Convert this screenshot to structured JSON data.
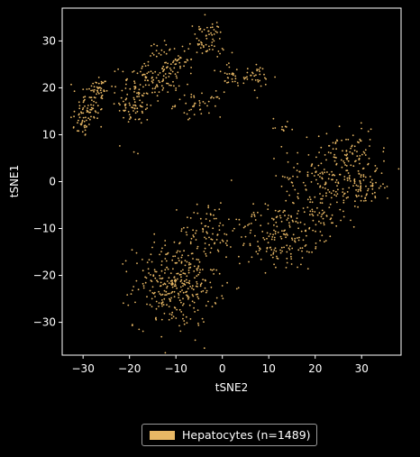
{
  "colors": {
    "background": "#000000",
    "points": "#e8b865",
    "axis": "#ffffff"
  },
  "chart_data": {
    "type": "scatter",
    "title": "",
    "xlabel": "tSNE2",
    "ylabel": "tSNE1",
    "xlim": [
      -34.5,
      38.5
    ],
    "ylim": [
      -37,
      37
    ],
    "xticks": [
      -30,
      -20,
      -10,
      0,
      10,
      20,
      30
    ],
    "yticks": [
      -30,
      -20,
      -10,
      0,
      10,
      20,
      30
    ],
    "xtick_labels": [
      "−30",
      "−20",
      "−10",
      "0",
      "10",
      "20",
      "30"
    ],
    "ytick_labels": [
      "−30",
      "−20",
      "−10",
      "0",
      "10",
      "20",
      "30"
    ],
    "grid": false,
    "legend_placement": "below",
    "series": [
      {
        "name": "Hepatocytes (n=1489)",
        "color": "#e8b865",
        "n_points": 1489,
        "clusters": [
          {
            "cx": -30,
            "cy": 13,
            "sx": 1.4,
            "sy": 1.8,
            "n": 45
          },
          {
            "cx": -28,
            "cy": 17,
            "sx": 1.5,
            "sy": 2.0,
            "n": 45
          },
          {
            "cx": -26.5,
            "cy": 20,
            "sx": 1.5,
            "sy": 1.5,
            "n": 35
          },
          {
            "cx": -19,
            "cy": 16,
            "sx": 2.0,
            "sy": 2.0,
            "n": 60
          },
          {
            "cx": -17,
            "cy": 21,
            "sx": 2.5,
            "sy": 2.5,
            "n": 70
          },
          {
            "cx": -12,
            "cy": 23,
            "sx": 2.5,
            "sy": 2.5,
            "n": 60
          },
          {
            "cx": -9,
            "cy": 26,
            "sx": 1.5,
            "sy": 1.3,
            "n": 25
          },
          {
            "cx": -14,
            "cy": 28.5,
            "sx": 0.8,
            "sy": 0.8,
            "n": 10
          },
          {
            "cx": -3.5,
            "cy": 30,
            "sx": 2.0,
            "sy": 2.2,
            "n": 65
          },
          {
            "cx": -5,
            "cy": 16.5,
            "sx": 2.5,
            "sy": 1.3,
            "n": 45
          },
          {
            "cx": 2,
            "cy": 22.5,
            "sx": 1.5,
            "sy": 1.3,
            "n": 25
          },
          {
            "cx": 7.5,
            "cy": 22,
            "sx": 2.0,
            "sy": 1.5,
            "n": 35
          },
          {
            "cx": 13,
            "cy": 12,
            "sx": 1.2,
            "sy": 0.8,
            "n": 12
          },
          {
            "cx": -18.5,
            "cy": 5.5,
            "sx": 0.3,
            "sy": 0.5,
            "n": 2
          },
          {
            "cx": -10,
            "cy": -22,
            "sx": 4.5,
            "sy": 4.5,
            "n": 330
          },
          {
            "cx": -3,
            "cy": -10,
            "sx": 3.0,
            "sy": 3.0,
            "n": 75
          },
          {
            "cx": 12,
            "cy": -12,
            "sx": 4.5,
            "sy": 3.5,
            "n": 170
          },
          {
            "cx": 24,
            "cy": 1,
            "sx": 5.5,
            "sy": 4.0,
            "n": 220
          },
          {
            "cx": 31,
            "cy": -1,
            "sx": 2.0,
            "sy": 2.0,
            "n": 45
          },
          {
            "cx": 20,
            "cy": -8,
            "sx": 3.0,
            "sy": 3.0,
            "n": 50
          },
          {
            "cx": 28,
            "cy": 8,
            "sx": 2.5,
            "sy": 2.5,
            "n": 40
          }
        ]
      }
    ]
  },
  "legend": {
    "label": "Hepatocytes (n=1489)"
  }
}
